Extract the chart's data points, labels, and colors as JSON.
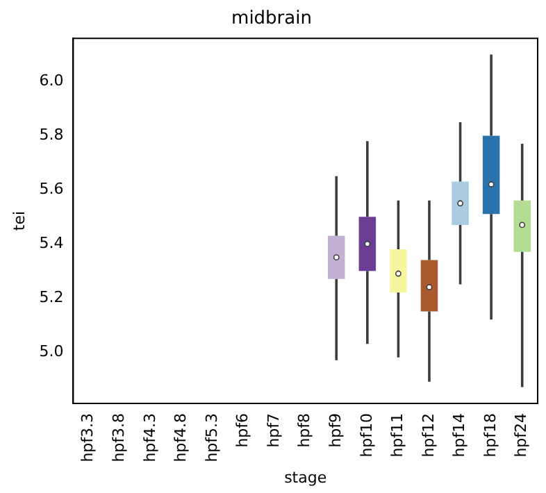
{
  "chart_data": {
    "type": "box",
    "title": "midbrain",
    "xlabel": "stage",
    "ylabel": "tei",
    "categories": [
      "hpf3.3",
      "hpf3.8",
      "hpf4.3",
      "hpf4.8",
      "hpf5.3",
      "hpf6",
      "hpf7",
      "hpf8",
      "hpf9",
      "hpf10",
      "hpf11",
      "hpf12",
      "hpf14",
      "hpf18",
      "hpf24"
    ],
    "boxes": [
      null,
      null,
      null,
      null,
      null,
      null,
      null,
      null,
      {
        "low": 4.97,
        "q1": 5.27,
        "median": 5.35,
        "q3": 5.43,
        "high": 5.65
      },
      {
        "low": 5.03,
        "q1": 5.3,
        "median": 5.4,
        "q3": 5.5,
        "high": 5.78
      },
      {
        "low": 4.98,
        "q1": 5.22,
        "median": 5.29,
        "q3": 5.38,
        "high": 5.56
      },
      {
        "low": 4.89,
        "q1": 5.15,
        "median": 5.24,
        "q3": 5.34,
        "high": 5.56
      },
      {
        "low": 5.25,
        "q1": 5.47,
        "median": 5.55,
        "q3": 5.63,
        "high": 5.85
      },
      {
        "low": 5.12,
        "q1": 5.51,
        "median": 5.62,
        "q3": 5.8,
        "high": 6.1
      },
      {
        "low": 4.87,
        "q1": 5.37,
        "median": 5.47,
        "q3": 5.56,
        "high": 5.77
      }
    ],
    "colors": [
      "#cccccc",
      "#cccccc",
      "#cccccc",
      "#cccccc",
      "#cccccc",
      "#cccccc",
      "#cccccc",
      "#cccccc",
      "#c3b1d4",
      "#6b3d94",
      "#f8f5a0",
      "#a9592e",
      "#a9cce0",
      "#2a72ac",
      "#b4dc92"
    ],
    "ylim": [
      4.81,
      6.16
    ],
    "yticks": [
      {
        "value": 5,
        "label": "5.0"
      },
      {
        "value": 5.2,
        "label": "5.2"
      },
      {
        "value": 5.4,
        "label": "5.4"
      },
      {
        "value": 5.6,
        "label": "5.6"
      },
      {
        "value": 5.8,
        "label": "5.8"
      },
      {
        "value": 6,
        "label": "6.0"
      }
    ]
  }
}
